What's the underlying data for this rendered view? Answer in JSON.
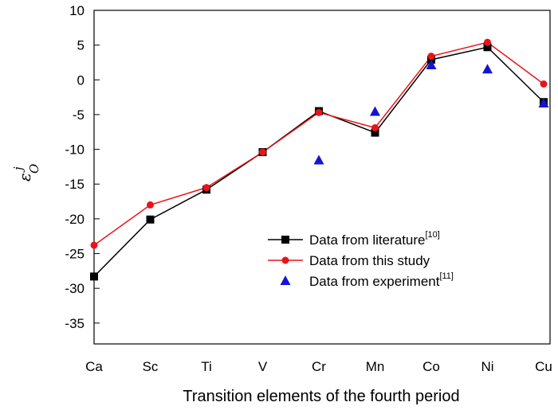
{
  "chart_data": {
    "type": "line",
    "xlabel": "Transition elements of the fourth period",
    "ylabel": {
      "symbol": "ε",
      "subscript": "O",
      "superscript": "j"
    },
    "categories": [
      "Ca",
      "Sc",
      "Ti",
      "V",
      "Cr",
      "Mn",
      "Co",
      "Ni",
      "Cu"
    ],
    "ylim": [
      -38,
      10
    ],
    "yticks": [
      10,
      5,
      0,
      -5,
      -10,
      -15,
      -20,
      -25,
      -30,
      -35
    ],
    "grid": false,
    "legend_position": "lower-right",
    "series": [
      {
        "name": "Data from literature",
        "name_sup": "[10]",
        "marker": "square",
        "line": true,
        "color": "#000000",
        "values": [
          -28.3,
          -20.1,
          -15.8,
          -10.4,
          -4.5,
          -7.6,
          2.9,
          4.7,
          -3.2
        ]
      },
      {
        "name": "Data from this study",
        "name_sup": "",
        "marker": "circle",
        "line": true,
        "color": "#e8141b",
        "values": [
          -23.8,
          -18.0,
          -15.5,
          -10.4,
          -4.7,
          -6.9,
          3.4,
          5.4,
          -0.6
        ]
      },
      {
        "name": "Data from experiment",
        "name_sup": "[11]",
        "marker": "triangle",
        "line": false,
        "color": "#1414d2",
        "values": [
          null,
          null,
          null,
          null,
          -11.6,
          -4.6,
          2.1,
          1.5,
          -3.4
        ]
      }
    ]
  }
}
